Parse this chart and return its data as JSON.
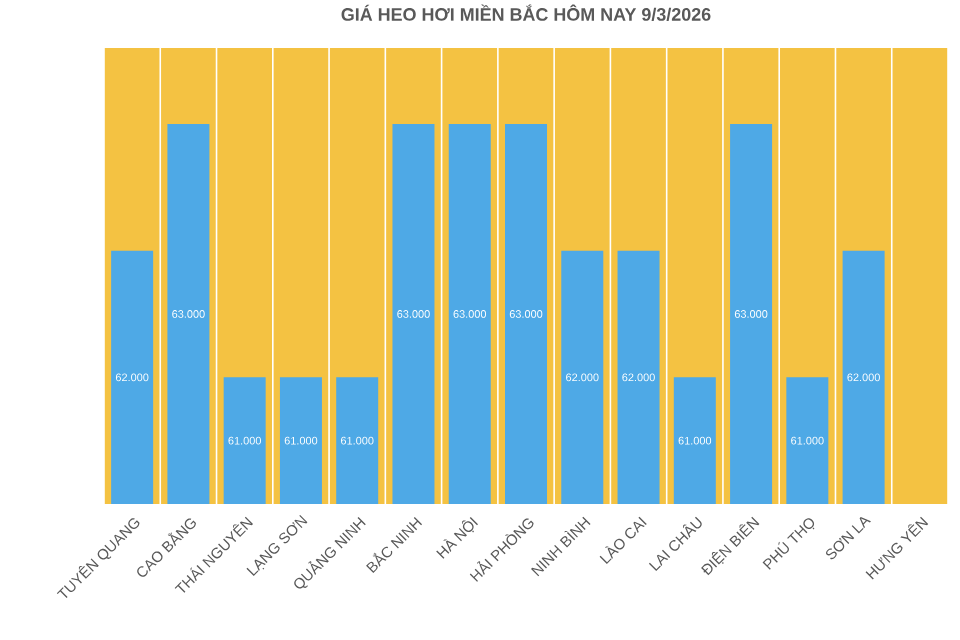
{
  "chart_data": {
    "type": "bar",
    "title": "GIÁ HEO HƠI MIỀN BẮC HÔM NAY 9/3/2026",
    "categories": [
      "TUYÊN QUANG",
      "CAO BẰNG",
      "THÁI NGUYÊN",
      "LẠNG SƠN",
      "QUẢNG NINH",
      "BẮC NINH",
      "HÀ NỘI",
      "HẢI PHÒNG",
      "NINH BÌNH",
      "LÀO CAI",
      "LAI CHÂU",
      "ĐIỆN BIÊN",
      "PHÚ THỌ",
      "SƠN LA",
      "HƯNG YÊN"
    ],
    "values": [
      62000,
      63000,
      61000,
      61000,
      61000,
      63000,
      63000,
      63000,
      62000,
      62000,
      61000,
      63000,
      61000,
      62000,
      null
    ],
    "value_labels": [
      "62.000",
      "63.000",
      "61.000",
      "61.000",
      "61.000",
      "63.000",
      "63.000",
      "63.000",
      "62.000",
      "62.000",
      "61.000",
      "63.000",
      "61.000",
      "62.000",
      null
    ],
    "color": "#4ea9e6",
    "ylim": [
      60000,
      63600
    ],
    "grid": "x",
    "tick_labels": "x"
  }
}
